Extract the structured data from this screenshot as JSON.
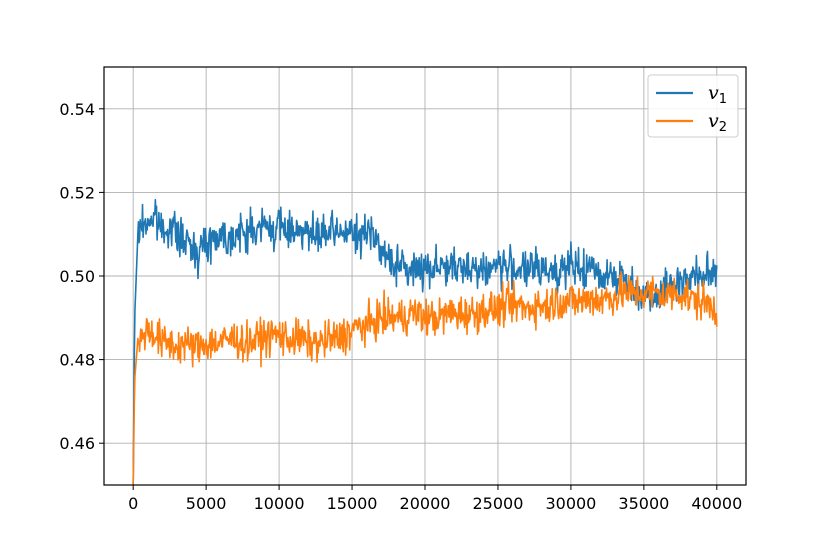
{
  "chart_data": {
    "type": "line",
    "title": "",
    "xlabel": "",
    "ylabel": "",
    "xlim": [
      -2000,
      42000
    ],
    "ylim": [
      0.45,
      0.55
    ],
    "xticks": [
      0,
      5000,
      10000,
      15000,
      20000,
      25000,
      30000,
      35000,
      40000
    ],
    "xtick_labels": [
      "0",
      "5000",
      "10000",
      "15000",
      "20000",
      "25000",
      "30000",
      "35000",
      "40000"
    ],
    "yticks": [
      0.46,
      0.48,
      0.5,
      0.52,
      0.54
    ],
    "ytick_labels": [
      "0.46",
      "0.48",
      "0.50",
      "0.52",
      "0.54"
    ],
    "grid": true,
    "legend_position": "top-right",
    "series": [
      {
        "name": "v1",
        "legend_main": "v",
        "legend_sub": "1",
        "color": "#1f77b4",
        "x": [
          0,
          100,
          300,
          500,
          1000,
          1500,
          2000,
          2500,
          3000,
          3500,
          4000,
          4500,
          5000,
          5500,
          6000,
          6500,
          7000,
          7500,
          8000,
          8500,
          9000,
          9500,
          10000,
          10500,
          11000,
          11500,
          12000,
          12500,
          13000,
          13500,
          14000,
          14500,
          15000,
          15500,
          16000,
          16500,
          17000,
          17500,
          18000,
          18500,
          19000,
          19500,
          20000,
          20500,
          21000,
          21500,
          22000,
          22500,
          23000,
          23500,
          24000,
          24500,
          25000,
          25500,
          26000,
          26500,
          27000,
          27500,
          28000,
          28500,
          29000,
          29500,
          30000,
          30500,
          31000,
          31500,
          32000,
          32500,
          33000,
          33500,
          34000,
          34500,
          35000,
          35500,
          36000,
          36500,
          37000,
          37500,
          38000,
          38500,
          39000,
          39500,
          40000
        ],
        "y": [
          0.45,
          0.49,
          0.508,
          0.512,
          0.513,
          0.514,
          0.511,
          0.512,
          0.51,
          0.508,
          0.507,
          0.506,
          0.508,
          0.509,
          0.51,
          0.509,
          0.51,
          0.51,
          0.511,
          0.511,
          0.512,
          0.511,
          0.512,
          0.511,
          0.511,
          0.512,
          0.51,
          0.509,
          0.51,
          0.51,
          0.51,
          0.511,
          0.51,
          0.509,
          0.51,
          0.512,
          0.505,
          0.504,
          0.503,
          0.502,
          0.501,
          0.502,
          0.502,
          0.502,
          0.503,
          0.502,
          0.502,
          0.501,
          0.503,
          0.502,
          0.501,
          0.502,
          0.503,
          0.502,
          0.502,
          0.502,
          0.501,
          0.502,
          0.501,
          0.502,
          0.501,
          0.502,
          0.502,
          0.502,
          0.501,
          0.502,
          0.5,
          0.501,
          0.5,
          0.499,
          0.498,
          0.497,
          0.495,
          0.496,
          0.496,
          0.497,
          0.498,
          0.499,
          0.499,
          0.5,
          0.5,
          0.5,
          0.502
        ]
      },
      {
        "name": "v2",
        "legend_main": "v",
        "legend_sub": "2",
        "color": "#ff7f0e",
        "x": [
          0,
          100,
          300,
          500,
          1000,
          1500,
          2000,
          2500,
          3000,
          3500,
          4000,
          4500,
          5000,
          5500,
          6000,
          6500,
          7000,
          7500,
          8000,
          8500,
          9000,
          9500,
          10000,
          10500,
          11000,
          11500,
          12000,
          12500,
          13000,
          13500,
          14000,
          14500,
          15000,
          15500,
          16000,
          16500,
          17000,
          17500,
          18000,
          18500,
          19000,
          19500,
          20000,
          20500,
          21000,
          21500,
          22000,
          22500,
          23000,
          23500,
          24000,
          24500,
          25000,
          25500,
          26000,
          26500,
          27000,
          27500,
          28000,
          28500,
          29000,
          29500,
          30000,
          30500,
          31000,
          31500,
          32000,
          32500,
          33000,
          33500,
          34000,
          34500,
          35000,
          35500,
          36000,
          36500,
          37000,
          37500,
          38000,
          38500,
          39000,
          39500,
          40000
        ],
        "y": [
          0.45,
          0.475,
          0.484,
          0.486,
          0.487,
          0.486,
          0.484,
          0.484,
          0.483,
          0.484,
          0.483,
          0.483,
          0.484,
          0.484,
          0.484,
          0.485,
          0.485,
          0.484,
          0.484,
          0.485,
          0.485,
          0.486,
          0.486,
          0.485,
          0.485,
          0.485,
          0.484,
          0.484,
          0.484,
          0.485,
          0.485,
          0.486,
          0.487,
          0.488,
          0.488,
          0.489,
          0.49,
          0.49,
          0.49,
          0.49,
          0.491,
          0.491,
          0.49,
          0.49,
          0.49,
          0.491,
          0.491,
          0.491,
          0.491,
          0.491,
          0.492,
          0.492,
          0.492,
          0.493,
          0.493,
          0.493,
          0.492,
          0.493,
          0.493,
          0.493,
          0.494,
          0.494,
          0.494,
          0.494,
          0.494,
          0.495,
          0.494,
          0.495,
          0.495,
          0.496,
          0.496,
          0.496,
          0.496,
          0.496,
          0.496,
          0.495,
          0.496,
          0.496,
          0.495,
          0.494,
          0.494,
          0.493,
          0.492
        ]
      }
    ]
  }
}
